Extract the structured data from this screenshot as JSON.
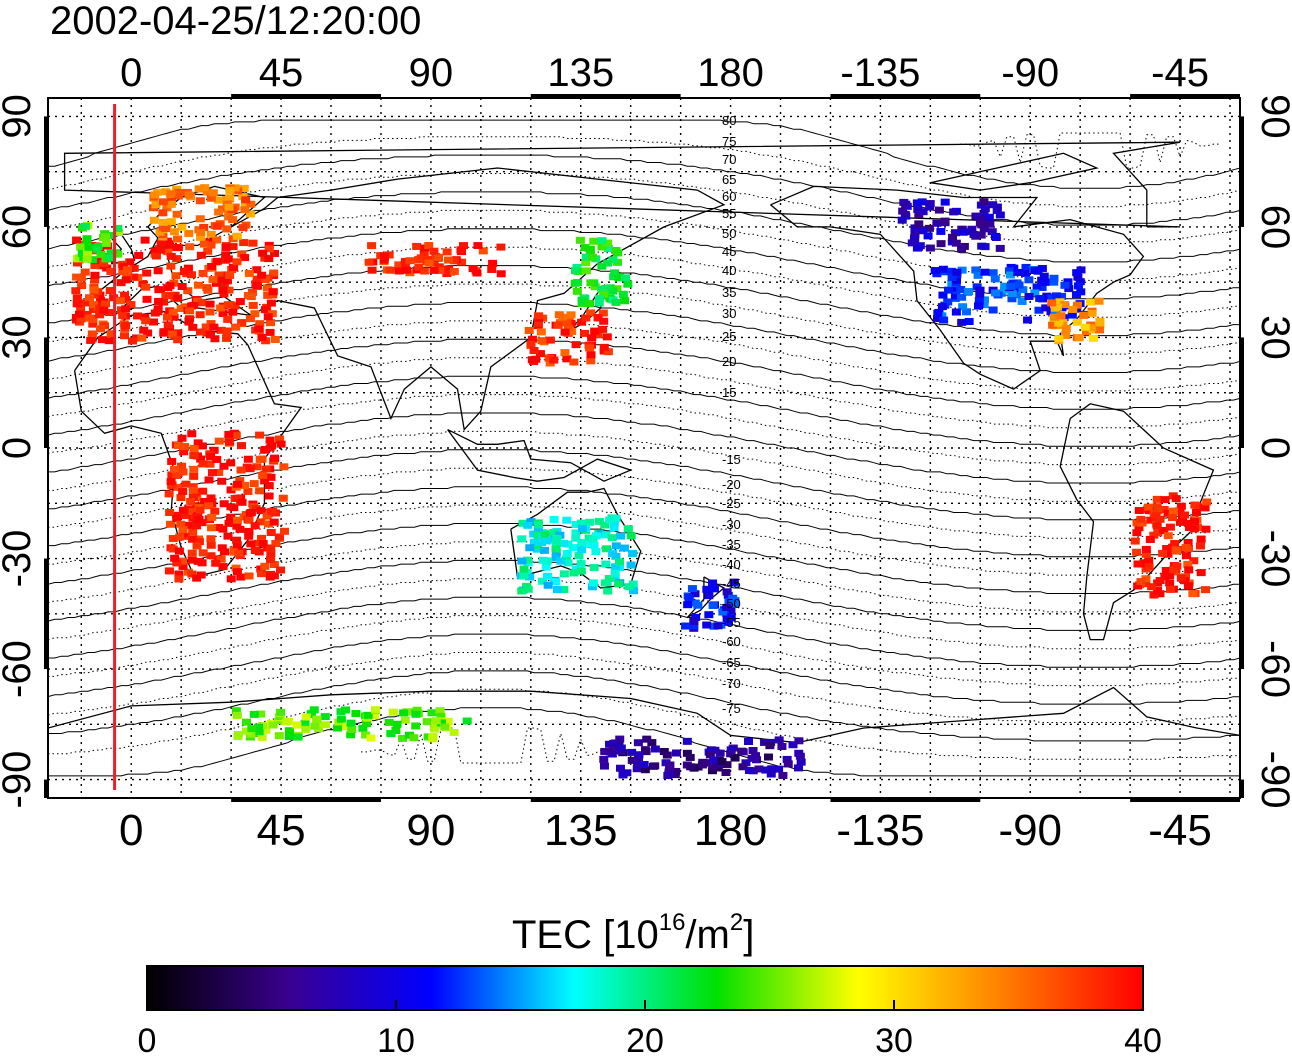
{
  "timestamp": "2002-04-25/12:20:00",
  "map": {
    "lon_ticks_labels": [
      "0",
      "45",
      "90",
      "135",
      "180",
      "-135",
      "-90",
      "-45"
    ],
    "lon_ticks_values": [
      0,
      45,
      90,
      135,
      180,
      225,
      270,
      315
    ],
    "lat_ticks_labels": [
      "90",
      "60",
      "30",
      "0",
      "-30",
      "-60",
      "-90"
    ],
    "lat_ticks_values": [
      90,
      60,
      30,
      0,
      -30,
      -60,
      -90
    ],
    "lon_range_east": [
      -25,
      333
    ],
    "lat_range": [
      -95,
      95
    ],
    "magnetic_lat_labels_north": [
      "80",
      "75",
      "70",
      "65",
      "60",
      "55",
      "50",
      "45",
      "40",
      "35",
      "30",
      "25",
      "20",
      "15"
    ],
    "magnetic_lat_labels_south": [
      "-15",
      "-20",
      "-25",
      "-30",
      "-35",
      "-40",
      "-45",
      "-50",
      "-55",
      "-60",
      "-65",
      "-70",
      "-75"
    ],
    "terminator_lon": -5,
    "terminator_color": "#e8202a"
  },
  "colorbar": {
    "title_main": "TEC  [10",
    "title_sup1": "16",
    "title_mid": "/m",
    "title_sup2": "2",
    "title_end": "]",
    "tick_labels": [
      "0",
      "10",
      "20",
      "30",
      "40"
    ],
    "tick_values": [
      0,
      10,
      20,
      30,
      40
    ],
    "range": [
      0,
      40
    ],
    "stops": [
      "#000000",
      "#3a0090",
      "#0000ff",
      "#00ffff",
      "#00e000",
      "#ffff00",
      "#ff8000",
      "#ff0000"
    ]
  },
  "tec_clusters": [
    {
      "region": "europe",
      "lon": [
        -18,
        42
      ],
      "lat": [
        30,
        58
      ],
      "tec": 39
    },
    {
      "region": "scandinavia",
      "lon": [
        5,
        35
      ],
      "lat": [
        58,
        72
      ],
      "tec": 35
    },
    {
      "region": "western-europe-green",
      "lon": [
        -18,
        -5
      ],
      "lat": [
        52,
        62
      ],
      "tec": 24
    },
    {
      "region": "russia",
      "lon": [
        70,
        110
      ],
      "lat": [
        48,
        56
      ],
      "tec": 39
    },
    {
      "region": "east-asia",
      "lon": [
        118,
        142
      ],
      "lat": [
        24,
        38
      ],
      "tec": 38
    },
    {
      "region": "japan-north",
      "lon": [
        132,
        148
      ],
      "lat": [
        40,
        58
      ],
      "tec": 22
    },
    {
      "region": "north-america-north",
      "lon": [
        -130,
        -100
      ],
      "lat": [
        55,
        68
      ],
      "tec": 8
    },
    {
      "region": "north-america",
      "lon": [
        -120,
        -75
      ],
      "lat": [
        35,
        50
      ],
      "tec": 12
    },
    {
      "region": "usa-east",
      "lon": [
        -85,
        -70
      ],
      "lat": [
        30,
        42
      ],
      "tec": 33
    },
    {
      "region": "south-america",
      "lon": [
        -60,
        -38
      ],
      "lat": [
        -40,
        -12
      ],
      "tec": 39
    },
    {
      "region": "australia",
      "lon": [
        115,
        150
      ],
      "lat": [
        -38,
        -18
      ],
      "tec": 18
    },
    {
      "region": "new-zealand",
      "lon": [
        165,
        180
      ],
      "lat": [
        -48,
        -35
      ],
      "tec": 11
    },
    {
      "region": "antarctica",
      "lon": [
        140,
        200
      ],
      "lat": [
        -88,
        -78
      ],
      "tec": 6
    },
    {
      "region": "southern-ocean",
      "lon": [
        30,
        100
      ],
      "lat": [
        -78,
        -70
      ],
      "tec": 25
    },
    {
      "region": "africa",
      "lon": [
        10,
        45
      ],
      "lat": [
        -35,
        5
      ],
      "tec": 39
    }
  ]
}
